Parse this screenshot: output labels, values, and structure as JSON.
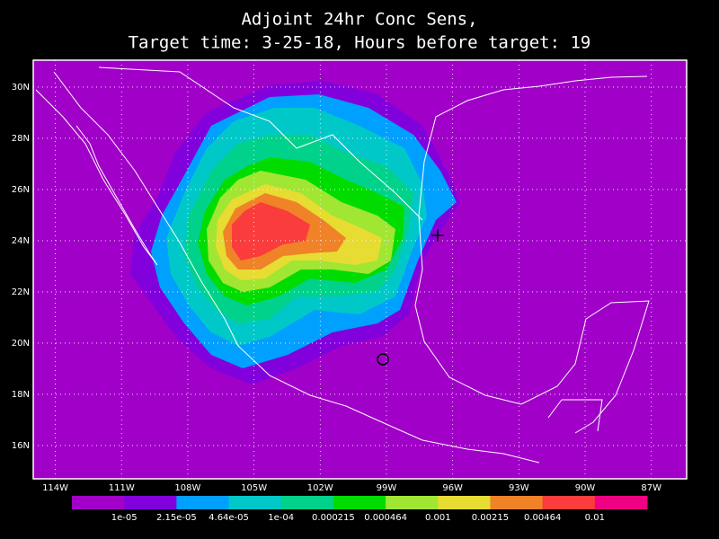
{
  "map": {
    "title": [
      "Adjoint 24hr Conc Sens,",
      "Target time: 3-25-18, Hours before target: 19"
    ],
    "lon_lim": [
      -115,
      -85.4
    ],
    "lat_lim": [
      14.7,
      31.05
    ],
    "lon_ticks": [
      {
        "value": -114,
        "label": "114W"
      },
      {
        "value": -111,
        "label": "111W"
      },
      {
        "value": -108,
        "label": "108W"
      },
      {
        "value": -105,
        "label": "105W"
      },
      {
        "value": -102,
        "label": "102W"
      },
      {
        "value": -99,
        "label": "99W"
      },
      {
        "value": -96,
        "label": "96W"
      },
      {
        "value": -93,
        "label": "93W"
      },
      {
        "value": -90,
        "label": "90W"
      },
      {
        "value": -87,
        "label": "87W"
      }
    ],
    "lat_ticks": [
      {
        "value": 30,
        "label": "30N"
      },
      {
        "value": 28,
        "label": "28N"
      },
      {
        "value": 26,
        "label": "26N"
      },
      {
        "value": 24,
        "label": "24N"
      },
      {
        "value": 22,
        "label": "22N"
      },
      {
        "value": 20,
        "label": "20N"
      },
      {
        "value": 18,
        "label": "18N"
      },
      {
        "value": 16,
        "label": "16N"
      }
    ],
    "colorbar": {
      "labels": [
        "1e-05",
        "2.15e-05",
        "4.64e-05",
        "1e-04",
        "0.000215",
        "0.000464",
        "0.001",
        "0.00215",
        "0.00464",
        "0.01"
      ],
      "colors": [
        "#a000c8",
        "#8200dc",
        "#00a0ff",
        "#00c8c8",
        "#00d28c",
        "#00dc00",
        "#a0e632",
        "#e6dc32",
        "#f08228",
        "#fa3c3c",
        "#f00082"
      ]
    }
  }
}
